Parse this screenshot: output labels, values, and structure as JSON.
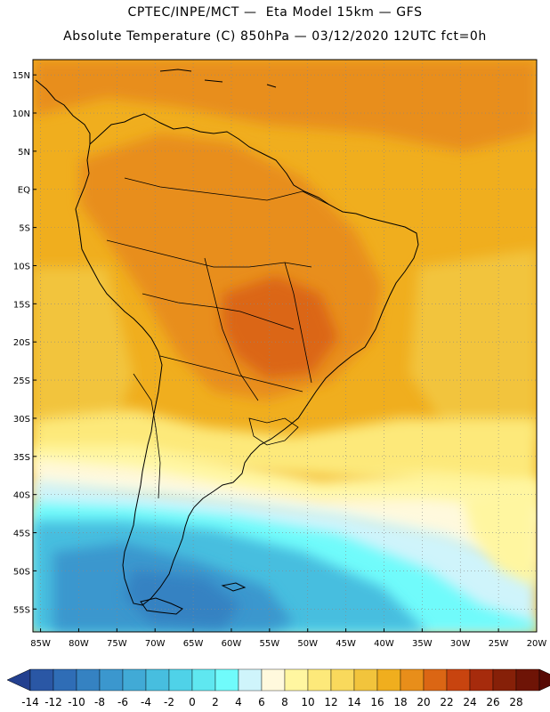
{
  "header": {
    "title_line1": "CPTEC/INPE/MCT —  Eta Model 15km — GFS",
    "title_line2": "Absolute Temperature (C) 850hPa — 03/12/2020 12UTC fct=0h"
  },
  "map": {
    "lat_labels": [
      {
        "lat": 15,
        "label": "15N"
      },
      {
        "lat": 10,
        "label": "10N"
      },
      {
        "lat": 5,
        "label": "5N"
      },
      {
        "lat": 0,
        "label": "EQ"
      },
      {
        "lat": -5,
        "label": "5S"
      },
      {
        "lat": -10,
        "label": "10S"
      },
      {
        "lat": -15,
        "label": "15S"
      },
      {
        "lat": -20,
        "label": "20S"
      },
      {
        "lat": -25,
        "label": "25S"
      },
      {
        "lat": -30,
        "label": "30S"
      },
      {
        "lat": -35,
        "label": "35S"
      },
      {
        "lat": -40,
        "label": "40S"
      },
      {
        "lat": -45,
        "label": "45S"
      },
      {
        "lat": -50,
        "label": "50S"
      },
      {
        "lat": -55,
        "label": "55S"
      }
    ],
    "lon_labels": [
      {
        "lon": -85,
        "label": "85W"
      },
      {
        "lon": -80,
        "label": "80W"
      },
      {
        "lon": -75,
        "label": "75W"
      },
      {
        "lon": -70,
        "label": "70W"
      },
      {
        "lon": -65,
        "label": "65W"
      },
      {
        "lon": -60,
        "label": "60W"
      },
      {
        "lon": -55,
        "label": "55W"
      },
      {
        "lon": -50,
        "label": "50W"
      },
      {
        "lon": -45,
        "label": "45W"
      },
      {
        "lon": -40,
        "label": "40W"
      },
      {
        "lon": -35,
        "label": "35W"
      },
      {
        "lon": -30,
        "label": "30W"
      },
      {
        "lon": -25,
        "label": "25W"
      },
      {
        "lon": -20,
        "label": "20W"
      }
    ],
    "lon_range": [
      -86,
      -20
    ],
    "lat_range": [
      -58,
      17
    ]
  },
  "colorbar": {
    "labels": [
      "-14",
      "-12",
      "-10",
      "-8",
      "-6",
      "-4",
      "-2",
      "0",
      "2",
      "4",
      "6",
      "8",
      "10",
      "12",
      "14",
      "16",
      "18",
      "20",
      "22",
      "24",
      "26",
      "28"
    ],
    "colors": [
      "#23408f",
      "#2a57a5",
      "#2f6db6",
      "#3582c2",
      "#3b97ce",
      "#41aad6",
      "#47bedf",
      "#4fd2e8",
      "#5fe7f0",
      "#70fbfb",
      "#cff4fb",
      "#fff9dd",
      "#fff6a0",
      "#fde97a",
      "#f9d95c",
      "#f2c43c",
      "#f0ae1e",
      "#e88e1a",
      "#db6614",
      "#c8440f",
      "#a62b0c",
      "#862008",
      "#6e1406",
      "#580a05"
    ]
  }
}
